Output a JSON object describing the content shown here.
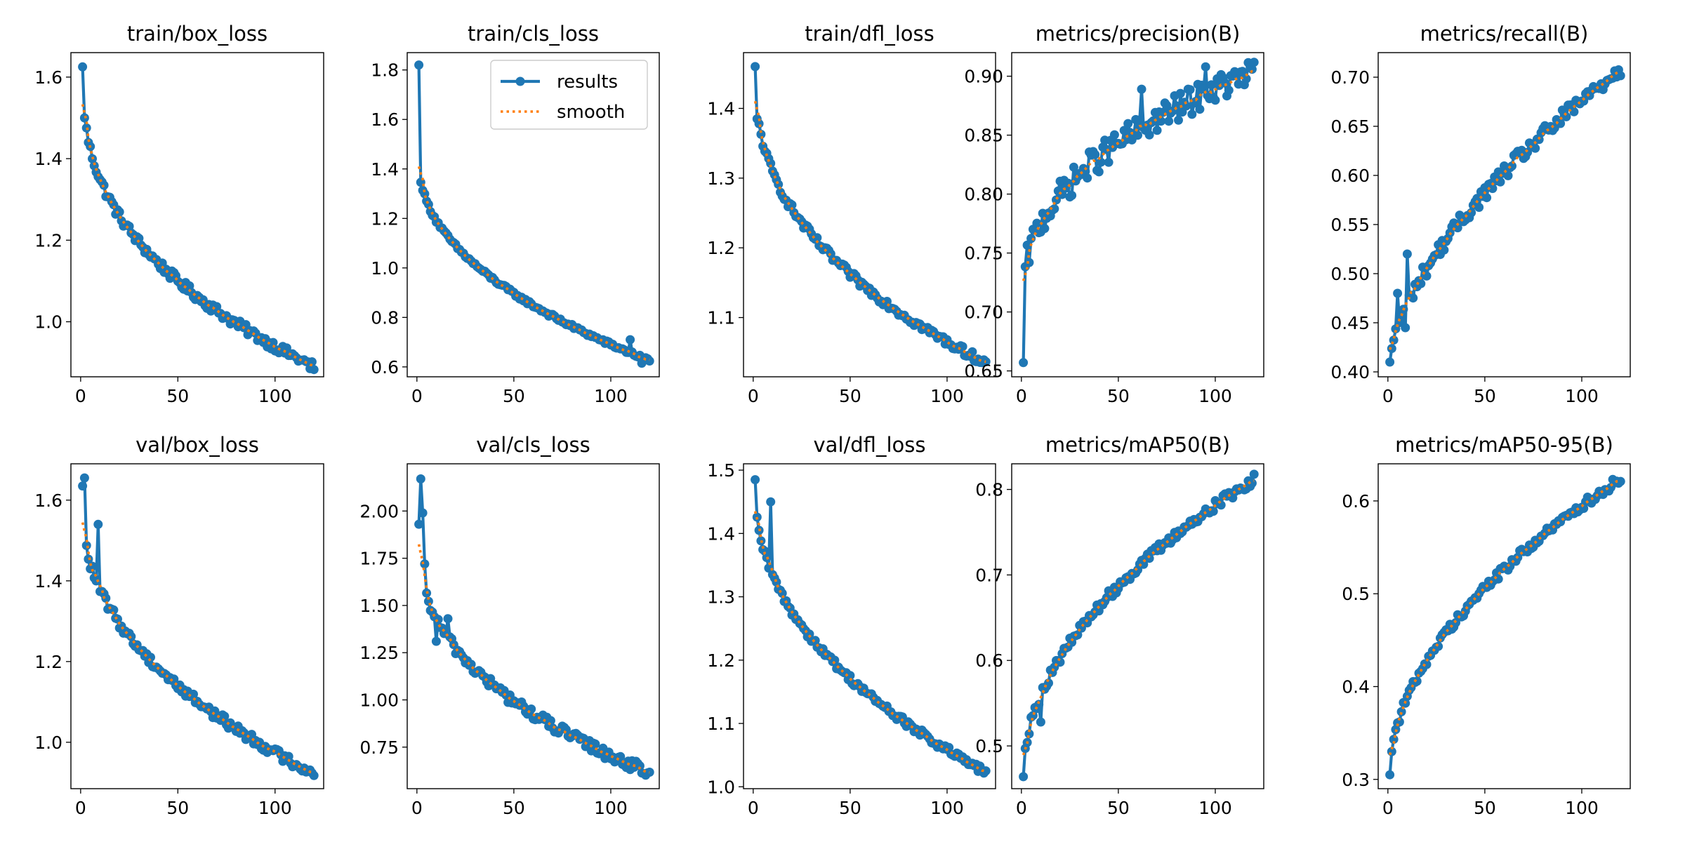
{
  "figure": {
    "background": "#ffffff"
  },
  "series_styles": {
    "results": {
      "label": "results",
      "color": "#1f77b4",
      "marker": "circle"
    },
    "smooth": {
      "label": "smooth",
      "color": "#ff7f0e",
      "linestyle": "dotted"
    }
  },
  "chart_data": [
    {
      "id": "train-box-loss",
      "type": "line",
      "title": "train/box_loss",
      "xlim": [
        -5,
        125
      ],
      "ylim": [
        0.865,
        1.66
      ],
      "xticks": [
        {
          "v": 0,
          "label": "0"
        },
        {
          "v": 50,
          "label": "50"
        },
        {
          "v": 100,
          "label": "100"
        }
      ],
      "yticks": [
        {
          "v": 1.0,
          "label": "1.0"
        },
        {
          "v": 1.2,
          "label": "1.2"
        },
        {
          "v": 1.4,
          "label": "1.4"
        },
        {
          "v": 1.6,
          "label": "1.6"
        }
      ],
      "start": 1.625,
      "end": 0.89,
      "shape": "power",
      "p": 0.38,
      "noise": 0.012,
      "extra": [
        {
          "x": 1,
          "y": 1.625
        },
        {
          "x": 2,
          "y": 1.5
        },
        {
          "x": 118,
          "y": 0.885
        }
      ],
      "legend": false
    },
    {
      "id": "train-cls-loss",
      "type": "line",
      "title": "train/cls_loss",
      "xlim": [
        -5,
        125
      ],
      "ylim": [
        0.56,
        1.87
      ],
      "xticks": [
        {
          "v": 0,
          "label": "0"
        },
        {
          "v": 50,
          "label": "50"
        },
        {
          "v": 100,
          "label": "100"
        }
      ],
      "yticks": [
        {
          "v": 0.6,
          "label": "0.6"
        },
        {
          "v": 0.8,
          "label": "0.8"
        },
        {
          "v": 1.0,
          "label": "1.0"
        },
        {
          "v": 1.2,
          "label": "1.2"
        },
        {
          "v": 1.4,
          "label": "1.4"
        },
        {
          "v": 1.6,
          "label": "1.6"
        },
        {
          "v": 1.8,
          "label": "1.8"
        }
      ],
      "start": 1.45,
      "end": 0.625,
      "shape": "power",
      "p": 0.45,
      "noise": 0.008,
      "extra": [
        {
          "x": 1,
          "y": 1.82
        },
        {
          "x": 110,
          "y": 0.71
        },
        {
          "x": 116,
          "y": 0.615
        }
      ],
      "legend": true
    },
    {
      "id": "train-dfl-loss",
      "type": "line",
      "title": "train/dfl_loss",
      "xlim": [
        -5,
        125
      ],
      "ylim": [
        1.015,
        1.48
      ],
      "xticks": [
        {
          "v": 0,
          "label": "0"
        },
        {
          "v": 50,
          "label": "50"
        },
        {
          "v": 100,
          "label": "100"
        }
      ],
      "yticks": [
        {
          "v": 1.1,
          "label": "1.1"
        },
        {
          "v": 1.2,
          "label": "1.2"
        },
        {
          "v": 1.3,
          "label": "1.3"
        },
        {
          "v": 1.4,
          "label": "1.4"
        }
      ],
      "start": 1.46,
      "end": 1.035,
      "shape": "power",
      "p": 0.4,
      "noise": 0.006,
      "extra": [
        {
          "x": 1,
          "y": 1.46
        },
        {
          "x": 2,
          "y": 1.385
        }
      ],
      "legend": false
    },
    {
      "id": "metrics-precision",
      "type": "line",
      "title": "metrics/precision(B)",
      "xlim": [
        -5,
        125
      ],
      "ylim": [
        0.645,
        0.92
      ],
      "xticks": [
        {
          "v": 0,
          "label": "0"
        },
        {
          "v": 50,
          "label": "50"
        },
        {
          "v": 100,
          "label": "100"
        }
      ],
      "yticks": [
        {
          "v": 0.65,
          "label": "0.65"
        },
        {
          "v": 0.7,
          "label": "0.70"
        },
        {
          "v": 0.75,
          "label": "0.75"
        },
        {
          "v": 0.8,
          "label": "0.80"
        },
        {
          "v": 0.85,
          "label": "0.85"
        },
        {
          "v": 0.9,
          "label": "0.90"
        }
      ],
      "start": 0.71,
      "end": 0.903,
      "shape": "power",
      "p": 0.42,
      "noise": 0.012,
      "extra": [
        {
          "x": 1,
          "y": 0.657
        },
        {
          "x": 62,
          "y": 0.889
        },
        {
          "x": 95,
          "y": 0.908
        }
      ],
      "legend": false
    },
    {
      "id": "metrics-recall",
      "type": "line",
      "title": "metrics/recall(B)",
      "xlim": [
        -5,
        125
      ],
      "ylim": [
        0.395,
        0.725
      ],
      "xticks": [
        {
          "v": 0,
          "label": "0"
        },
        {
          "v": 50,
          "label": "50"
        },
        {
          "v": 100,
          "label": "100"
        }
      ],
      "yticks": [
        {
          "v": 0.4,
          "label": "0.40"
        },
        {
          "v": 0.45,
          "label": "0.45"
        },
        {
          "v": 0.5,
          "label": "0.50"
        },
        {
          "v": 0.55,
          "label": "0.55"
        },
        {
          "v": 0.6,
          "label": "0.60"
        },
        {
          "v": 0.65,
          "label": "0.65"
        },
        {
          "v": 0.7,
          "label": "0.70"
        }
      ],
      "start": 0.41,
      "end": 0.708,
      "shape": "power",
      "p": 0.62,
      "noise": 0.008,
      "extra": [
        {
          "x": 1,
          "y": 0.41
        },
        {
          "x": 5,
          "y": 0.48
        },
        {
          "x": 9,
          "y": 0.445
        },
        {
          "x": 10,
          "y": 0.52
        }
      ],
      "legend": false
    },
    {
      "id": "val-box-loss",
      "type": "line",
      "title": "val/box_loss",
      "xlim": [
        -5,
        125
      ],
      "ylim": [
        0.885,
        1.69
      ],
      "xticks": [
        {
          "v": 0,
          "label": "0"
        },
        {
          "v": 50,
          "label": "50"
        },
        {
          "v": 100,
          "label": "100"
        }
      ],
      "yticks": [
        {
          "v": 1.0,
          "label": "1.0"
        },
        {
          "v": 1.2,
          "label": "1.2"
        },
        {
          "v": 1.4,
          "label": "1.4"
        },
        {
          "v": 1.6,
          "label": "1.6"
        }
      ],
      "start": 1.585,
      "end": 0.922,
      "shape": "power",
      "p": 0.45,
      "noise": 0.012,
      "extra": [
        {
          "x": 1,
          "y": 1.635
        },
        {
          "x": 2,
          "y": 1.655
        },
        {
          "x": 9,
          "y": 1.54
        }
      ],
      "legend": false
    },
    {
      "id": "val-cls-loss",
      "type": "line",
      "title": "val/cls_loss",
      "xlim": [
        -5,
        125
      ],
      "ylim": [
        0.53,
        2.25
      ],
      "xticks": [
        {
          "v": 0,
          "label": "0"
        },
        {
          "v": 50,
          "label": "50"
        },
        {
          "v": 100,
          "label": "100"
        }
      ],
      "yticks": [
        {
          "v": 0.75,
          "label": "0.75"
        },
        {
          "v": 1.0,
          "label": "1.00"
        },
        {
          "v": 1.25,
          "label": "1.25"
        },
        {
          "v": 1.5,
          "label": "1.50"
        },
        {
          "v": 1.75,
          "label": "1.75"
        },
        {
          "v": 2.0,
          "label": "2.00"
        }
      ],
      "start": 1.88,
      "end": 0.615,
      "shape": "power",
      "p": 0.4,
      "noise": 0.03,
      "extra": [
        {
          "x": 1,
          "y": 1.93
        },
        {
          "x": 2,
          "y": 2.17
        },
        {
          "x": 3,
          "y": 1.99
        },
        {
          "x": 4,
          "y": 1.72
        },
        {
          "x": 10,
          "y": 1.31
        },
        {
          "x": 16,
          "y": 1.43
        }
      ],
      "legend": false
    },
    {
      "id": "val-dfl-loss",
      "type": "line",
      "title": "val/dfl_loss",
      "xlim": [
        -5,
        125
      ],
      "ylim": [
        0.997,
        1.51
      ],
      "xticks": [
        {
          "v": 0,
          "label": "0"
        },
        {
          "v": 50,
          "label": "50"
        },
        {
          "v": 100,
          "label": "100"
        }
      ],
      "yticks": [
        {
          "v": 1.0,
          "label": "1.0"
        },
        {
          "v": 1.1,
          "label": "1.1"
        },
        {
          "v": 1.2,
          "label": "1.2"
        },
        {
          "v": 1.3,
          "label": "1.3"
        },
        {
          "v": 1.4,
          "label": "1.4"
        },
        {
          "v": 1.5,
          "label": "1.5"
        }
      ],
      "start": 1.475,
      "end": 1.022,
      "shape": "power",
      "p": 0.45,
      "noise": 0.006,
      "extra": [
        {
          "x": 1,
          "y": 1.485
        },
        {
          "x": 9,
          "y": 1.45
        },
        {
          "x": 10,
          "y": 1.335
        }
      ],
      "legend": false
    },
    {
      "id": "metrics-map50",
      "type": "line",
      "title": "metrics/mAP50(B)",
      "xlim": [
        -5,
        125
      ],
      "ylim": [
        0.45,
        0.83
      ],
      "xticks": [
        {
          "v": 0,
          "label": "0"
        },
        {
          "v": 50,
          "label": "50"
        },
        {
          "v": 100,
          "label": "100"
        }
      ],
      "yticks": [
        {
          "v": 0.5,
          "label": "0.5"
        },
        {
          "v": 0.6,
          "label": "0.6"
        },
        {
          "v": 0.7,
          "label": "0.7"
        },
        {
          "v": 0.8,
          "label": "0.8"
        }
      ],
      "start": 0.464,
      "end": 0.812,
      "shape": "power",
      "p": 0.5,
      "noise": 0.006,
      "extra": [
        {
          "x": 1,
          "y": 0.464
        },
        {
          "x": 10,
          "y": 0.528
        }
      ],
      "legend": false
    },
    {
      "id": "metrics-map50-95",
      "type": "line",
      "title": "metrics/mAP50-95(B)",
      "xlim": [
        -5,
        125
      ],
      "ylim": [
        0.29,
        0.64
      ],
      "xticks": [
        {
          "v": 0,
          "label": "0"
        },
        {
          "v": 50,
          "label": "50"
        },
        {
          "v": 100,
          "label": "100"
        }
      ],
      "yticks": [
        {
          "v": 0.3,
          "label": "0.3"
        },
        {
          "v": 0.4,
          "label": "0.4"
        },
        {
          "v": 0.5,
          "label": "0.5"
        },
        {
          "v": 0.6,
          "label": "0.6"
        }
      ],
      "start": 0.305,
      "end": 0.624,
      "shape": "power",
      "p": 0.52,
      "noise": 0.005,
      "extra": [
        {
          "x": 1,
          "y": 0.305
        },
        {
          "x": 2,
          "y": 0.33
        }
      ],
      "legend": false
    }
  ]
}
